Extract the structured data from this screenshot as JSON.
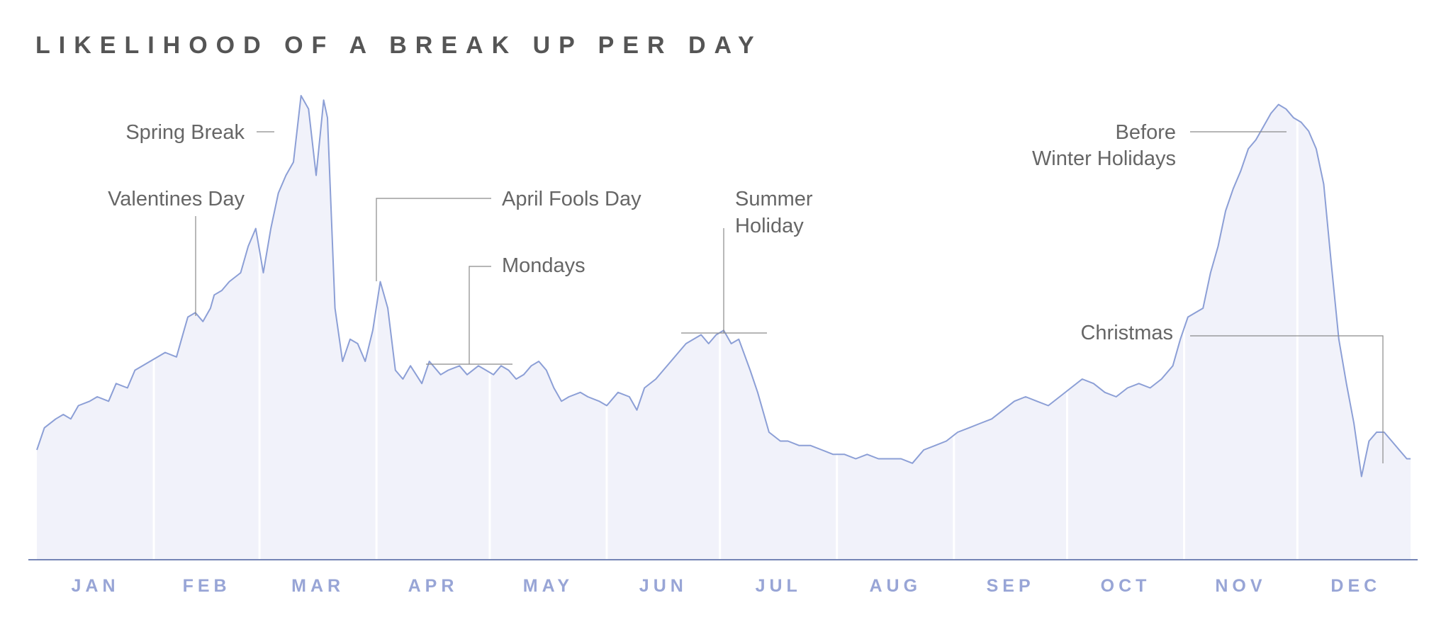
{
  "chart_data": {
    "type": "area",
    "title": "LIKELIHOOD OF A BREAK UP PER DAY",
    "xlabel": "",
    "ylabel": "",
    "months": [
      "JAN",
      "FEB",
      "MAR",
      "APR",
      "MAY",
      "JUN",
      "JUL",
      "AUG",
      "SEP",
      "OCT",
      "NOV",
      "DEC"
    ],
    "ylim": [
      0,
      100
    ],
    "grid": false,
    "legend": "none",
    "colors": {
      "line": "#8c9fd6",
      "fill": "#eef0f9",
      "axis": "#4a5f9e",
      "month_label": "#98a5d6",
      "title": "#555555",
      "annotation": "#666666"
    },
    "series": [
      {
        "day_of_year": [
          1,
          3,
          6,
          8,
          10,
          12,
          15,
          17,
          20,
          22,
          25,
          27,
          29,
          31,
          33,
          35,
          38,
          40,
          41,
          43,
          45,
          47,
          48,
          50,
          52,
          55,
          57,
          59,
          61,
          63,
          65,
          67,
          69,
          71,
          73,
          75,
          77,
          78,
          80,
          82,
          84,
          86,
          88,
          90,
          92,
          94,
          96,
          98,
          100,
          103,
          105,
          108,
          110,
          113,
          115,
          118,
          120,
          122,
          124,
          126,
          128,
          130,
          132,
          134,
          136,
          138,
          140,
          142,
          145,
          147,
          150,
          152,
          155,
          158,
          160,
          162,
          165,
          167,
          169,
          171,
          173,
          175,
          177,
          179,
          181,
          183,
          185,
          187,
          190,
          192,
          195,
          198,
          200,
          203,
          206,
          209,
          212,
          215,
          218,
          221,
          224,
          227,
          230,
          233,
          236,
          239,
          242,
          245,
          248,
          251,
          254,
          257,
          260,
          263,
          266,
          269,
          272,
          275,
          278,
          281,
          284,
          287,
          290,
          293,
          296,
          299,
          302,
          304,
          306,
          308,
          310,
          312,
          314,
          316,
          318,
          320,
          322,
          324,
          326,
          328,
          330,
          332,
          334,
          336,
          338,
          340,
          342,
          344,
          346,
          348,
          350,
          352,
          354,
          356,
          358,
          360,
          362,
          364,
          365
        ],
        "values": [
          20,
          25,
          27,
          28,
          27,
          30,
          31,
          32,
          31,
          35,
          34,
          38,
          39,
          40,
          41,
          42,
          41,
          47,
          50,
          51,
          49,
          52,
          55,
          56,
          58,
          60,
          66,
          70,
          60,
          70,
          78,
          82,
          85,
          100,
          97,
          82,
          99,
          95,
          52,
          40,
          45,
          44,
          40,
          47,
          58,
          52,
          38,
          36,
          39,
          35,
          40,
          37,
          38,
          39,
          37,
          39,
          38,
          37,
          39,
          38,
          36,
          37,
          39,
          40,
          38,
          34,
          31,
          32,
          33,
          32,
          31,
          30,
          33,
          32,
          29,
          34,
          36,
          38,
          40,
          42,
          44,
          45,
          46,
          44,
          46,
          47,
          44,
          45,
          38,
          33,
          24,
          22,
          22,
          21,
          21,
          20,
          19,
          19,
          18,
          19,
          18,
          18,
          18,
          17,
          20,
          21,
          22,
          24,
          25,
          26,
          27,
          29,
          31,
          32,
          31,
          30,
          32,
          34,
          36,
          35,
          33,
          32,
          34,
          35,
          34,
          36,
          39,
          45,
          50,
          51,
          52,
          60,
          66,
          74,
          79,
          83,
          88,
          90,
          93,
          96,
          98,
          97,
          95,
          94,
          92,
          88,
          80,
          62,
          45,
          35,
          26,
          14,
          22,
          24,
          24,
          22,
          20,
          18,
          18
        ]
      }
    ],
    "annotations": [
      {
        "lines": [
          "Spring Break"
        ]
      },
      {
        "lines": [
          "Valentines Day"
        ]
      },
      {
        "lines": [
          "April Fools Day"
        ]
      },
      {
        "lines": [
          "Mondays"
        ]
      },
      {
        "lines": [
          "Summer",
          "Holiday"
        ]
      },
      {
        "lines": [
          "Before",
          "Winter Holidays"
        ]
      },
      {
        "lines": [
          "Christmas"
        ]
      }
    ]
  }
}
